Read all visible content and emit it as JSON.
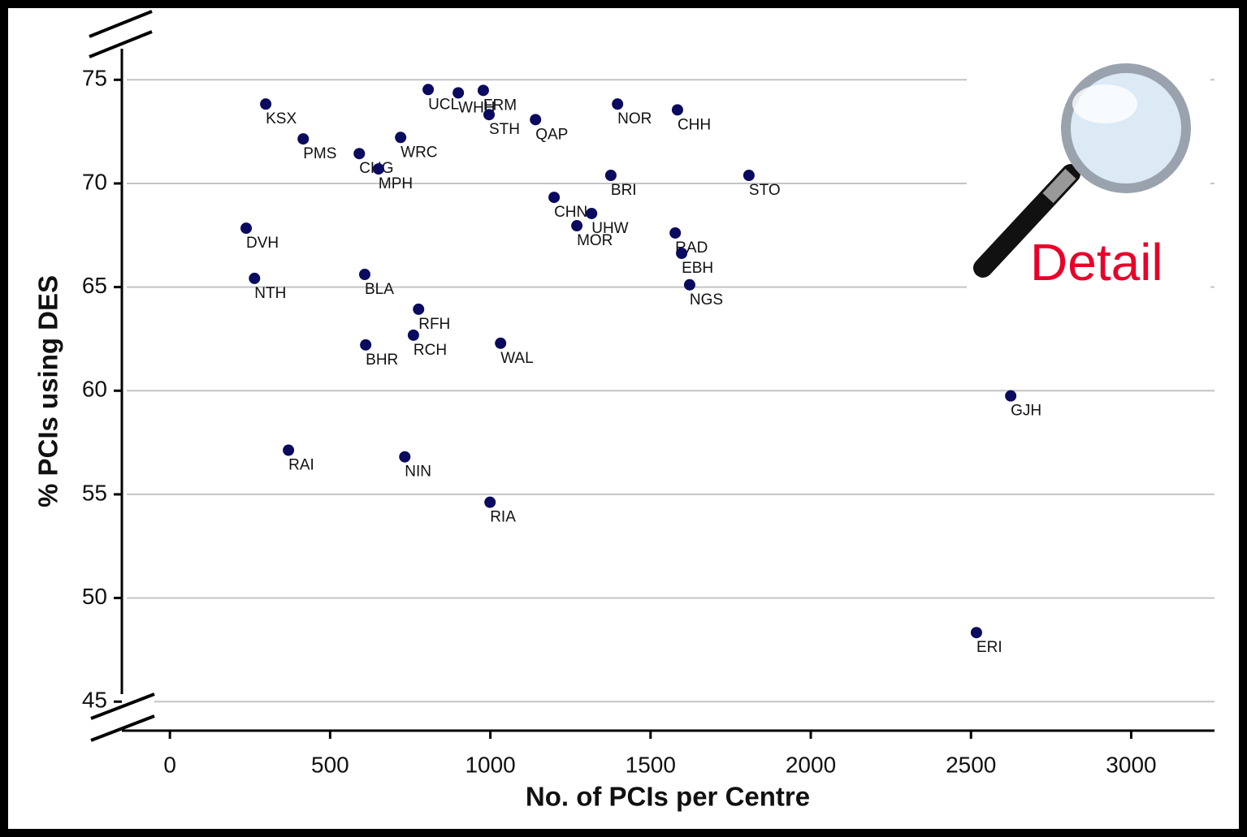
{
  "chart_data": {
    "type": "scatter",
    "x_label": "No. of PCIs per Centre",
    "y_label": "% PCIs using DES",
    "annotation": "Detail",
    "labels": [
      "KSX",
      "PMS",
      "CHG",
      "MPH",
      "WRC",
      "UCL",
      "WHH",
      "FRM",
      "STH",
      "QAP",
      "NOR",
      "CHH",
      "BRI",
      "STO",
      "CHN",
      "UHW",
      "MOR",
      "RAD",
      "EBH",
      "NGS",
      "DVH",
      "NTH",
      "BLA",
      "RFH",
      "RCH",
      "WAL",
      "BHR",
      "GJH",
      "RAI",
      "NIN",
      "RIA",
      "ERI"
    ],
    "x": [
      299,
      416,
      591,
      651,
      720,
      806,
      900,
      978,
      996,
      1141,
      1397,
      1584,
      1376,
      1807,
      1199,
      1316,
      1270,
      1577,
      1597,
      1622,
      238,
      264,
      608,
      776,
      760,
      1032,
      611,
      2624,
      370,
      733,
      999,
      2517
    ],
    "values": [
      73.83,
      72.15,
      71.44,
      70.7,
      72.22,
      74.53,
      74.37,
      74.49,
      73.32,
      73.08,
      73.83,
      73.55,
      70.39,
      70.39,
      69.33,
      68.55,
      67.96,
      67.61,
      66.63,
      65.11,
      67.84,
      65.42,
      65.61,
      63.93,
      62.68,
      62.29,
      62.21,
      59.75,
      57.13,
      56.81,
      54.62,
      48.33
    ],
    "color": "#0a0a5e",
    "xlim": [
      -150,
      3260
    ],
    "ylim": [
      43.6,
      76.5
    ],
    "xticks": [
      0,
      500,
      1000,
      1500,
      2000,
      2500,
      3000
    ],
    "yticks": [
      45,
      50,
      55,
      60,
      65,
      70,
      75
    ],
    "grid": true
  }
}
